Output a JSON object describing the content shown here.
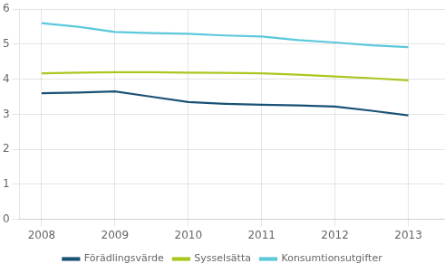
{
  "chart_data": {
    "type": "line",
    "x": [
      2008,
      2008.5,
      2009,
      2009.5,
      2010,
      2010.5,
      2011,
      2011.5,
      2012,
      2012.5,
      2013
    ],
    "series": [
      {
        "name": "Förädlingsvärde",
        "color": "#1a5276",
        "values": [
          3.6,
          3.62,
          3.65,
          3.5,
          3.35,
          3.3,
          3.27,
          3.25,
          3.22,
          3.1,
          2.97
        ]
      },
      {
        "name": "Sysselsätta",
        "color": "#a8c820",
        "values": [
          4.17,
          4.19,
          4.2,
          4.2,
          4.19,
          4.18,
          4.17,
          4.13,
          4.08,
          4.03,
          3.97
        ]
      },
      {
        "name": "Konsumtionsutgifter",
        "color": "#5bc8dc",
        "values": [
          5.6,
          5.5,
          5.35,
          5.32,
          5.3,
          5.25,
          5.22,
          5.12,
          5.05,
          4.97,
          4.92
        ]
      }
    ],
    "xlim": [
      2007.7,
      2013.5
    ],
    "xticks": [
      2008,
      2009,
      2010,
      2011,
      2012,
      2013
    ],
    "ylim": [
      0,
      6
    ],
    "yticks": [
      0,
      1,
      2,
      3,
      4,
      5,
      6
    ],
    "grid": true,
    "legend": "lower center"
  }
}
